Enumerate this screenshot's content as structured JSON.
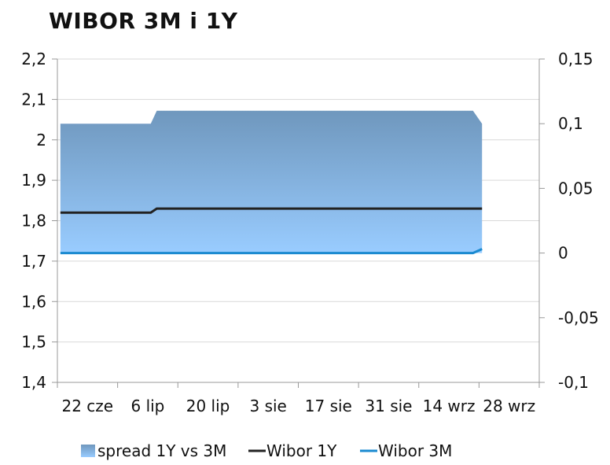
{
  "chart_data": {
    "type": "line",
    "title": "WIBOR 3M i 1Y",
    "x_tick_labels": [
      "22 cze",
      "6 lip",
      "20 lip",
      "3 sie",
      "17 sie",
      "31 sie",
      "14 wrz",
      "28 wrz"
    ],
    "y_left": {
      "ylim": [
        1.4,
        2.2
      ],
      "ticks": [
        2.2,
        2.1,
        2,
        1.9,
        1.8,
        1.7,
        1.6,
        1.5,
        1.4
      ],
      "tick_labels": [
        "2,2",
        "2,1",
        "2",
        "1,9",
        "1,8",
        "1,7",
        "1,6",
        "1,5",
        "1,4"
      ]
    },
    "y_right": {
      "ylim": [
        -0.1,
        0.15
      ],
      "ticks": [
        0.15,
        0.1,
        0.05,
        0,
        -0.05,
        -0.1
      ],
      "tick_labels": [
        "0,15",
        "0,1",
        "0,05",
        "0",
        "-0,05",
        "-0,1"
      ]
    },
    "series": [
      {
        "name": "spread 1Y vs 3M",
        "type": "area",
        "axis": "right",
        "color_top": "#6f97bd",
        "color_bottom": "#99ccff",
        "points": [
          [
            0,
            0.1
          ],
          [
            1.5,
            0.1
          ],
          [
            1.6,
            0.11
          ],
          [
            6.85,
            0.11
          ],
          [
            7.0,
            0.1
          ]
        ]
      },
      {
        "name": "Wibor 1Y",
        "type": "line",
        "axis": "left",
        "color": "#222222",
        "points": [
          [
            0,
            1.82
          ],
          [
            1.5,
            1.82
          ],
          [
            1.6,
            1.83
          ],
          [
            7.0,
            1.83
          ]
        ]
      },
      {
        "name": "Wibor 3M",
        "type": "line",
        "axis": "left",
        "color": "#1a8ad0",
        "points": [
          [
            0,
            1.72
          ],
          [
            6.85,
            1.72
          ],
          [
            7.0,
            1.73
          ]
        ]
      }
    ],
    "legend_position": "bottom"
  }
}
